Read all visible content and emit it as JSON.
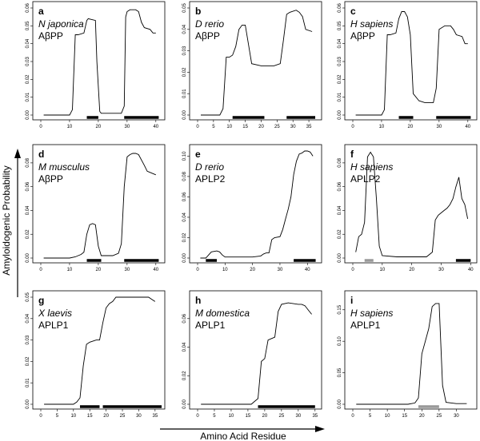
{
  "figure": {
    "ylabel": "Amyloidogenic Probability",
    "xlabel": "Amino Acid Residue"
  },
  "chart_data": [
    {
      "type": "line",
      "letter": "a",
      "species": "N japonica",
      "protein": "AβPP",
      "xlim": [
        0,
        42
      ],
      "ylim": [
        0,
        0.06
      ],
      "xticks": [
        "0",
        "10",
        "20",
        "30",
        "40"
      ],
      "yticks": [
        "0.00",
        "0.01",
        "0.02",
        "0.03",
        "0.04",
        "0.05",
        "0.06"
      ],
      "x": [
        1,
        10,
        11,
        12,
        13,
        15,
        16,
        16.5,
        19,
        19.5,
        20.5,
        21,
        28,
        29,
        29.5,
        30,
        31,
        33,
        34,
        35,
        36,
        38,
        39,
        40
      ],
      "y": [
        0,
        0,
        0.003,
        0.045,
        0.045,
        0.046,
        0.053,
        0.054,
        0.053,
        0.03,
        0.002,
        0.001,
        0.001,
        0.005,
        0.055,
        0.058,
        0.059,
        0.059,
        0.058,
        0.052,
        0.049,
        0.048,
        0.046,
        0.046
      ],
      "bars": [
        {
          "from": 16,
          "to": 20,
          "color": "#000000"
        },
        {
          "from": 29,
          "to": 41,
          "color": "#000000"
        }
      ]
    },
    {
      "type": "line",
      "letter": "b",
      "species": "D rerio",
      "protein": "AβPP",
      "xlim": [
        0,
        38
      ],
      "ylim": [
        0,
        0.05
      ],
      "xticks": [
        "0",
        "5",
        "10",
        "15",
        "20",
        "25",
        "30",
        "35"
      ],
      "yticks": [
        "0.00",
        "0.01",
        "0.02",
        "0.03",
        "0.04",
        "0.05"
      ],
      "x": [
        1,
        7,
        8,
        9,
        10,
        11,
        12,
        13,
        14,
        15,
        16,
        17,
        20,
        22,
        24,
        26,
        27,
        28,
        29,
        31,
        32,
        33,
        34,
        36
      ],
      "y": [
        0,
        0,
        0.003,
        0.027,
        0.027,
        0.028,
        0.032,
        0.04,
        0.042,
        0.042,
        0.033,
        0.024,
        0.023,
        0.023,
        0.023,
        0.024,
        0.035,
        0.047,
        0.048,
        0.049,
        0.048,
        0.046,
        0.04,
        0.039
      ],
      "bars": [
        {
          "from": 11,
          "to": 21,
          "color": "#000000"
        },
        {
          "from": 28,
          "to": 37,
          "color": "#000000"
        }
      ]
    },
    {
      "type": "line",
      "letter": "c",
      "species": "H sapiens",
      "protein": "AβPP",
      "xlim": [
        0,
        42
      ],
      "ylim": [
        0,
        0.06
      ],
      "xticks": [
        "0",
        "10",
        "20",
        "30",
        "40"
      ],
      "yticks": [
        "0.00",
        "0.01",
        "0.02",
        "0.03",
        "0.04",
        "0.05",
        "0.06"
      ],
      "x": [
        1,
        10,
        11,
        12,
        13,
        15,
        16,
        17,
        18,
        19,
        20,
        21,
        23,
        25,
        28,
        29,
        30,
        32,
        34,
        35,
        36,
        38,
        39,
        40
      ],
      "y": [
        0,
        0,
        0.003,
        0.045,
        0.045,
        0.046,
        0.054,
        0.058,
        0.058,
        0.055,
        0.045,
        0.012,
        0.008,
        0.007,
        0.007,
        0.015,
        0.048,
        0.05,
        0.05,
        0.048,
        0.045,
        0.044,
        0.04,
        0.04
      ],
      "bars": [
        {
          "from": 16,
          "to": 21,
          "color": "#000000"
        },
        {
          "from": 29,
          "to": 41,
          "color": "#000000"
        }
      ]
    },
    {
      "type": "line",
      "letter": "d",
      "species": "M musculus",
      "protein": "AβPP",
      "xlim": [
        0,
        42
      ],
      "ylim": [
        0,
        0.09
      ],
      "xticks": [
        "0",
        "10",
        "20",
        "30",
        "40"
      ],
      "yticks": [
        "0.00",
        "0.02",
        "0.04",
        "0.06",
        "0.08"
      ],
      "x": [
        1,
        10,
        12,
        14,
        15,
        16,
        17,
        18,
        19,
        20,
        21,
        25,
        27,
        28,
        29,
        30,
        31,
        32,
        33,
        34,
        36,
        37,
        38,
        40
      ],
      "y": [
        0,
        0,
        0.001,
        0.003,
        0.005,
        0.02,
        0.028,
        0.029,
        0.028,
        0.01,
        0.002,
        0.002,
        0.004,
        0.012,
        0.06,
        0.085,
        0.087,
        0.088,
        0.088,
        0.087,
        0.078,
        0.073,
        0.072,
        0.07
      ],
      "bars": [
        {
          "from": 16,
          "to": 21,
          "color": "#000000"
        },
        {
          "from": 29,
          "to": 41,
          "color": "#000000"
        }
      ]
    },
    {
      "type": "line",
      "letter": "e",
      "species": "D rerio",
      "protein": "APLP2",
      "xlim": [
        0,
        44
      ],
      "ylim": [
        0,
        0.105
      ],
      "xticks": [
        "0",
        "10",
        "20",
        "30",
        "40"
      ],
      "yticks": [
        "0.00",
        "0.02",
        "0.04",
        "0.06",
        "0.08",
        "0.10"
      ],
      "x": [
        1,
        3,
        4,
        5,
        7,
        8,
        9,
        10,
        20,
        23,
        24,
        25,
        26,
        27,
        28,
        30,
        31,
        32,
        33,
        34,
        35,
        36,
        37,
        38,
        39,
        40,
        41,
        42
      ],
      "y": [
        0,
        0,
        0.003,
        0.006,
        0.007,
        0.006,
        0.003,
        0.001,
        0.001,
        0.002,
        0.004,
        0.005,
        0.005,
        0.018,
        0.02,
        0.021,
        0.028,
        0.038,
        0.048,
        0.06,
        0.082,
        0.095,
        0.102,
        0.103,
        0.105,
        0.105,
        0.104,
        0.1
      ],
      "bars": [
        {
          "from": 3,
          "to": 7,
          "color": "#000000"
        },
        {
          "from": 35,
          "to": 43,
          "color": "#000000"
        }
      ]
    },
    {
      "type": "line",
      "letter": "f",
      "species": "H sapiens",
      "protein": "APLP2",
      "xlim": [
        0,
        41
      ],
      "ylim": [
        0,
        0.09
      ],
      "xticks": [
        "0",
        "10",
        "20",
        "30",
        "40"
      ],
      "yticks": [
        "0.00",
        "0.02",
        "0.04",
        "0.06",
        "0.08"
      ],
      "x": [
        1,
        2,
        3,
        4,
        5,
        6,
        7,
        8,
        9,
        10,
        15,
        20,
        25,
        27,
        28,
        29,
        30,
        31,
        32,
        33,
        34,
        35,
        36,
        37,
        38,
        39
      ],
      "y": [
        0.005,
        0.018,
        0.02,
        0.03,
        0.085,
        0.089,
        0.085,
        0.05,
        0.01,
        0.002,
        0.001,
        0.001,
        0.001,
        0.005,
        0.032,
        0.036,
        0.038,
        0.04,
        0.042,
        0.045,
        0.05,
        0.06,
        0.068,
        0.05,
        0.045,
        0.033
      ],
      "bars": [
        {
          "from": 4,
          "to": 7,
          "color": "#999999"
        },
        {
          "from": 35,
          "to": 40,
          "color": "#000000"
        }
      ]
    },
    {
      "type": "line",
      "letter": "g",
      "species": "X laevis",
      "protein": "APLP1",
      "xlim": [
        0,
        37
      ],
      "ylim": [
        0,
        0.05
      ],
      "xticks": [
        "0",
        "5",
        "10",
        "15",
        "20",
        "25",
        "30",
        "35"
      ],
      "yticks": [
        "0.00",
        "0.01",
        "0.02",
        "0.03",
        "0.04",
        "0.05"
      ],
      "x": [
        1,
        10,
        11,
        12,
        13,
        14,
        15,
        17,
        18,
        19,
        20,
        21,
        22,
        23,
        25,
        30,
        33,
        34,
        35
      ],
      "y": [
        0,
        0,
        0.001,
        0.003,
        0.018,
        0.028,
        0.029,
        0.03,
        0.03,
        0.038,
        0.045,
        0.047,
        0.048,
        0.05,
        0.05,
        0.05,
        0.05,
        0.049,
        0.048
      ],
      "bars": [
        {
          "from": 12,
          "to": 18,
          "color": "#000000"
        },
        {
          "from": 19,
          "to": 37,
          "color": "#000000"
        }
      ]
    },
    {
      "type": "line",
      "letter": "h",
      "species": "M domestica",
      "protein": "APLP1",
      "xlim": [
        0,
        36
      ],
      "ylim": [
        0,
        0.075
      ],
      "xticks": [
        "0",
        "5",
        "10",
        "15",
        "20",
        "25",
        "30",
        "35"
      ],
      "yticks": [
        "0.00",
        "0.02",
        "0.04",
        "0.06"
      ],
      "x": [
        1,
        16,
        17,
        18,
        19,
        20,
        21,
        22,
        23,
        24,
        25,
        27,
        30,
        31,
        32,
        33,
        34
      ],
      "y": [
        0,
        0,
        0.002,
        0.004,
        0.03,
        0.032,
        0.045,
        0.046,
        0.047,
        0.065,
        0.07,
        0.071,
        0.07,
        0.07,
        0.069,
        0.066,
        0.063
      ],
      "bars": [
        {
          "from": 18,
          "to": 35,
          "color": "#000000"
        }
      ]
    },
    {
      "type": "line",
      "letter": "i",
      "species": "H sapiens",
      "protein": "APLP1",
      "xlim": [
        0,
        35
      ],
      "ylim": [
        0,
        0.17
      ],
      "xticks": [
        "0",
        "5",
        "10",
        "15",
        "20",
        "25",
        "30"
      ],
      "yticks": [
        "0.00",
        "0.05",
        "0.10",
        "0.15"
      ],
      "x": [
        1,
        16,
        18,
        19,
        20,
        21,
        22,
        23,
        24,
        25,
        26,
        27,
        30,
        33
      ],
      "y": [
        0,
        0,
        0.002,
        0.01,
        0.08,
        0.1,
        0.12,
        0.155,
        0.16,
        0.16,
        0.03,
        0.003,
        0.001,
        0.001
      ],
      "bars": [
        {
          "from": 19,
          "to": 25,
          "color": "#999999"
        }
      ]
    }
  ]
}
